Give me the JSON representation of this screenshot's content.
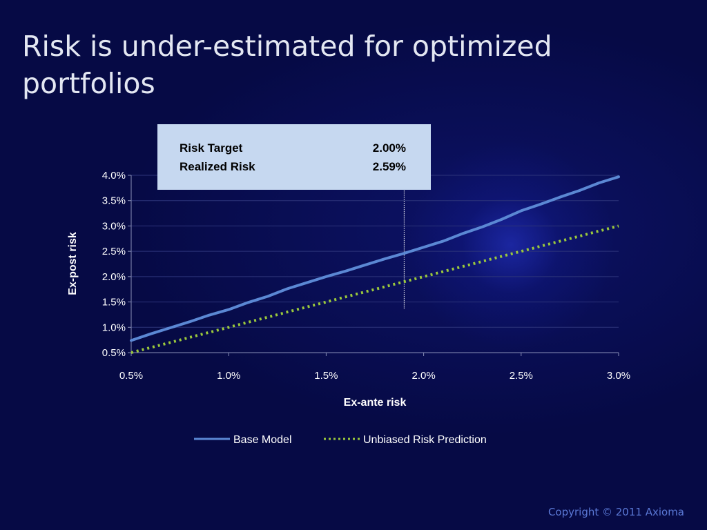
{
  "slide": {
    "title": "Risk is under-estimated for optimized portfolios",
    "copyright": "Copyright © 2011 Axioma"
  },
  "colors": {
    "background": "#060a45",
    "base_model": "#5b88d4",
    "unbiased": "#9bc93c",
    "infobox": "#c6d8f0"
  },
  "infobox": {
    "rows": [
      {
        "label": "Risk Target",
        "value": "2.00%"
      },
      {
        "label": "Realized Risk",
        "value": "2.59%"
      }
    ]
  },
  "chart_data": {
    "type": "line",
    "xlabel": "Ex-ante risk",
    "ylabel": "Ex-post risk",
    "xlim": [
      0.5,
      3.0
    ],
    "ylim": [
      0.5,
      4.0
    ],
    "x_ticks": [
      "0.5%",
      "1.0%",
      "1.5%",
      "2.0%",
      "2.5%",
      "3.0%"
    ],
    "y_ticks": [
      "0.5%",
      "1.0%",
      "1.5%",
      "2.0%",
      "2.5%",
      "3.0%",
      "3.5%",
      "4.0%"
    ],
    "grid": "horizontal",
    "legend_position": "bottom",
    "marker_line_x": 1.9,
    "series": [
      {
        "name": "Base Model",
        "style": "solid",
        "x": [
          0.5,
          0.6,
          0.7,
          0.8,
          0.9,
          1.0,
          1.1,
          1.2,
          1.3,
          1.4,
          1.5,
          1.6,
          1.7,
          1.8,
          1.9,
          2.0,
          2.1,
          2.2,
          2.3,
          2.4,
          2.5,
          2.6,
          2.7,
          2.8,
          2.9,
          3.0
        ],
        "y": [
          0.74,
          0.87,
          0.99,
          1.11,
          1.24,
          1.35,
          1.49,
          1.61,
          1.76,
          1.88,
          2.0,
          2.11,
          2.23,
          2.35,
          2.46,
          2.58,
          2.7,
          2.85,
          2.98,
          3.13,
          3.3,
          3.43,
          3.57,
          3.7,
          3.85,
          3.97
        ]
      },
      {
        "name": "Unbiased Risk Prediction",
        "style": "dotted",
        "x": [
          0.5,
          3.0
        ],
        "y": [
          0.5,
          3.0
        ]
      }
    ]
  }
}
